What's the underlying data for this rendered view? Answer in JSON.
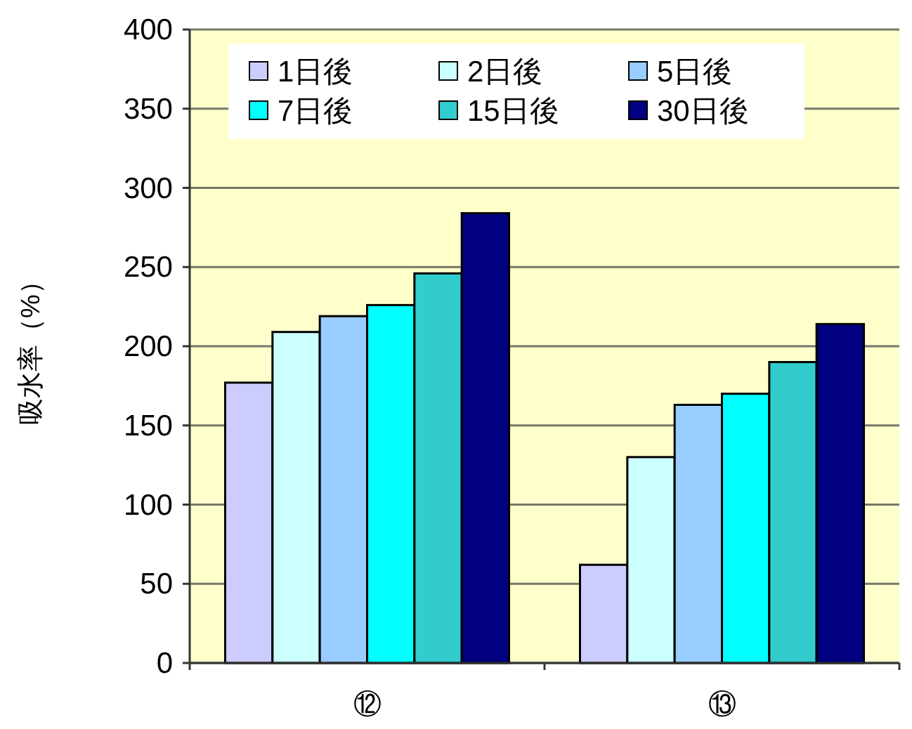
{
  "chart_data": {
    "type": "bar",
    "ylabel": "吸水率（%）",
    "categories": [
      "⑫",
      "⑬"
    ],
    "series": [
      {
        "name": "1日後",
        "color": "#ccccff",
        "values": [
          177,
          62
        ]
      },
      {
        "name": "2日後",
        "color": "#ccffff",
        "values": [
          209,
          130
        ]
      },
      {
        "name": "5日後",
        "color": "#99ccff",
        "values": [
          219,
          163
        ]
      },
      {
        "name": "7日後",
        "color": "#00ffff",
        "values": [
          226,
          170
        ]
      },
      {
        "name": "15日後",
        "color": "#33cccc",
        "values": [
          246,
          190
        ]
      },
      {
        "name": "30日後",
        "color": "#000080",
        "values": [
          284,
          214
        ]
      }
    ],
    "ylim": [
      0,
      400
    ],
    "yticks": [
      0,
      50,
      100,
      150,
      200,
      250,
      300,
      350,
      400
    ],
    "grid": "y",
    "legend": "top"
  }
}
